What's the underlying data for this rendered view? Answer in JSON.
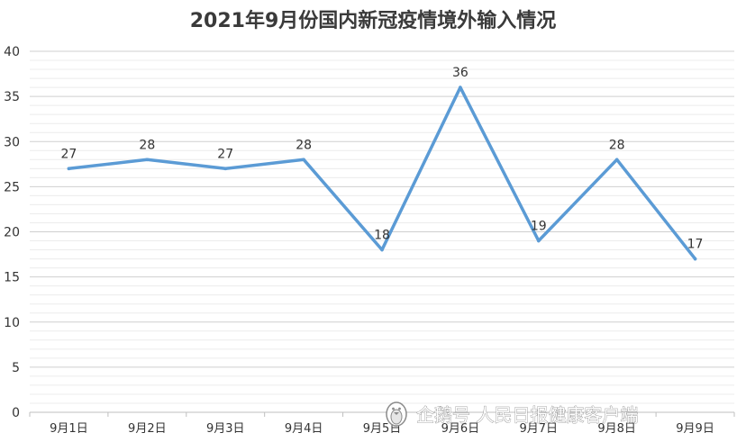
{
  "chart_data": {
    "type": "line",
    "title": "2021年9月份国内新冠疫情境外输入情况",
    "categories": [
      "9月1日",
      "9月2日",
      "9月3日",
      "9月4日",
      "9月5日",
      "9月6日",
      "9月7日",
      "9月8日",
      "9月9日"
    ],
    "series": [
      {
        "values": [
          27,
          28,
          27,
          28,
          18,
          36,
          19,
          28,
          17
        ]
      }
    ],
    "ylim": [
      0,
      40
    ],
    "yticks": [
      0,
      5,
      10,
      15,
      20,
      25,
      30,
      35,
      40
    ],
    "grid": true,
    "line_color": "#5B9BD5"
  },
  "watermark": {
    "text": "企鹅号 人民日报健康客户端",
    "icon": "penguin-icon"
  }
}
